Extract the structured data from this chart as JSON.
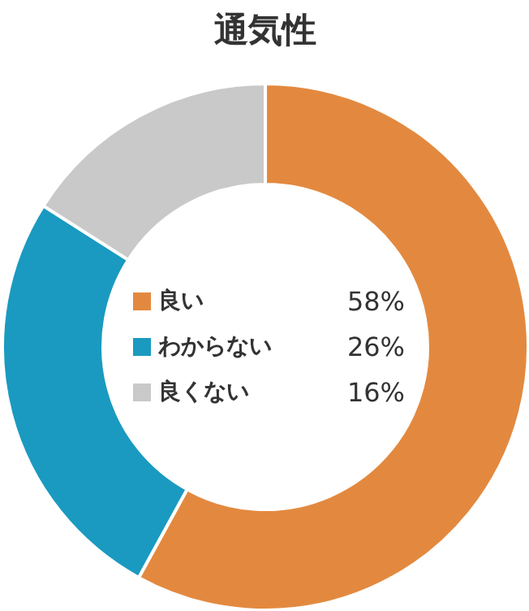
{
  "chart_data": {
    "type": "donut",
    "title": "通気性",
    "categories": [
      "良い",
      "わからない",
      "良くない"
    ],
    "values": [
      58,
      26,
      16
    ],
    "colors": [
      "#e3893f",
      "#1a9ac0",
      "#c9c9c9"
    ],
    "value_labels": [
      "58%",
      "26%",
      "16%"
    ],
    "legend": "center"
  }
}
